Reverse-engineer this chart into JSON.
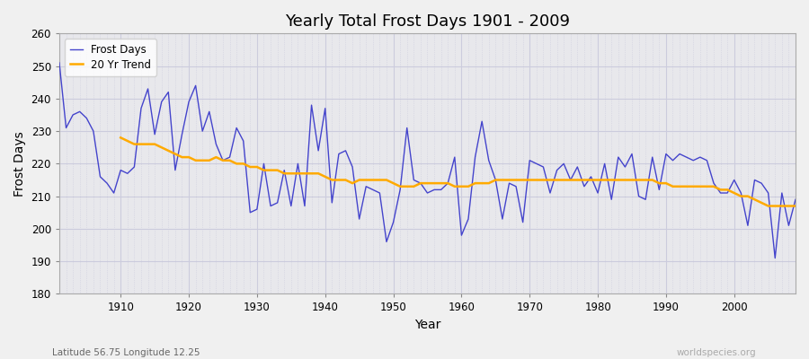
{
  "title": "Yearly Total Frost Days 1901 - 2009",
  "xlabel": "Year",
  "ylabel": "Frost Days",
  "lat_lon_label": "Latitude 56.75 Longitude 12.25",
  "watermark": "worldspecies.org",
  "ylim": [
    180,
    260
  ],
  "xlim": [
    1901,
    2009
  ],
  "yticks": [
    180,
    190,
    200,
    210,
    220,
    230,
    240,
    250,
    260
  ],
  "xticks": [
    1910,
    1920,
    1930,
    1940,
    1950,
    1960,
    1970,
    1980,
    1990,
    2000
  ],
  "frost_color": "#4444cc",
  "trend_color": "#ffaa00",
  "bg_color": "#f0f0f0",
  "plot_bg_color": "#e8e8ec",
  "grid_color": "#ccccdd",
  "years": [
    1901,
    1902,
    1903,
    1904,
    1905,
    1906,
    1907,
    1908,
    1909,
    1910,
    1911,
    1912,
    1913,
    1914,
    1915,
    1916,
    1917,
    1918,
    1919,
    1920,
    1921,
    1922,
    1923,
    1924,
    1925,
    1926,
    1927,
    1928,
    1929,
    1930,
    1931,
    1932,
    1933,
    1934,
    1935,
    1936,
    1937,
    1938,
    1939,
    1940,
    1941,
    1942,
    1943,
    1944,
    1945,
    1946,
    1947,
    1948,
    1949,
    1950,
    1951,
    1952,
    1953,
    1954,
    1955,
    1956,
    1957,
    1958,
    1959,
    1960,
    1961,
    1962,
    1963,
    1964,
    1965,
    1966,
    1967,
    1968,
    1969,
    1970,
    1971,
    1972,
    1973,
    1974,
    1975,
    1976,
    1977,
    1978,
    1979,
    1980,
    1981,
    1982,
    1983,
    1984,
    1985,
    1986,
    1987,
    1988,
    1989,
    1990,
    1991,
    1992,
    1993,
    1994,
    1995,
    1996,
    1997,
    1998,
    1999,
    2000,
    2001,
    2002,
    2003,
    2004,
    2005,
    2006,
    2007,
    2008,
    2009
  ],
  "frost_days": [
    251,
    231,
    235,
    236,
    234,
    230,
    216,
    214,
    211,
    218,
    217,
    219,
    237,
    243,
    229,
    239,
    242,
    218,
    229,
    239,
    244,
    230,
    236,
    226,
    221,
    222,
    231,
    227,
    205,
    206,
    220,
    207,
    208,
    218,
    207,
    220,
    207,
    238,
    224,
    237,
    208,
    223,
    224,
    219,
    203,
    213,
    212,
    211,
    196,
    202,
    212,
    231,
    215,
    214,
    211,
    212,
    212,
    214,
    222,
    198,
    203,
    222,
    233,
    221,
    215,
    203,
    214,
    213,
    202,
    221,
    220,
    219,
    211,
    218,
    220,
    215,
    219,
    213,
    216,
    211,
    220,
    209,
    222,
    219,
    223,
    210,
    209,
    222,
    212,
    223,
    221,
    223,
    222,
    221,
    222,
    221,
    214,
    211,
    211,
    215,
    211,
    201,
    215,
    214,
    211,
    191,
    211,
    201,
    209
  ],
  "trend_years": [
    1910,
    1911,
    1912,
    1913,
    1914,
    1915,
    1916,
    1917,
    1918,
    1919,
    1920,
    1921,
    1922,
    1923,
    1924,
    1925,
    1926,
    1927,
    1928,
    1929,
    1930,
    1931,
    1932,
    1933,
    1934,
    1935,
    1936,
    1937,
    1938,
    1939,
    1940,
    1941,
    1942,
    1943,
    1944,
    1945,
    1946,
    1947,
    1948,
    1949,
    1950,
    1951,
    1952,
    1953,
    1954,
    1955,
    1956,
    1957,
    1958,
    1959,
    1960,
    1961,
    1962,
    1963,
    1964,
    1965,
    1966,
    1967,
    1968,
    1969,
    1970,
    1971,
    1972,
    1973,
    1974,
    1975,
    1976,
    1977,
    1978,
    1979,
    1980,
    1981,
    1982,
    1983,
    1984,
    1985,
    1986,
    1987,
    1988,
    1989,
    1990,
    1991,
    1992,
    1993,
    1994,
    1995,
    1996,
    1997,
    1998,
    1999,
    2000,
    2001,
    2002,
    2003,
    2004,
    2005,
    2006,
    2007,
    2008,
    2009
  ],
  "trend_values": [
    228,
    227,
    226,
    226,
    226,
    226,
    225,
    224,
    223,
    222,
    222,
    221,
    221,
    221,
    222,
    221,
    221,
    220,
    220,
    219,
    219,
    218,
    218,
    218,
    217,
    217,
    217,
    217,
    217,
    217,
    216,
    215,
    215,
    215,
    214,
    215,
    215,
    215,
    215,
    215,
    214,
    213,
    213,
    213,
    214,
    214,
    214,
    214,
    214,
    213,
    213,
    213,
    214,
    214,
    214,
    215,
    215,
    215,
    215,
    215,
    215,
    215,
    215,
    215,
    215,
    215,
    215,
    215,
    215,
    215,
    215,
    215,
    215,
    215,
    215,
    215,
    215,
    215,
    215,
    214,
    214,
    213,
    213,
    213,
    213,
    213,
    213,
    213,
    212,
    212,
    211,
    210,
    210,
    209,
    208,
    207,
    207,
    207,
    207,
    207
  ]
}
